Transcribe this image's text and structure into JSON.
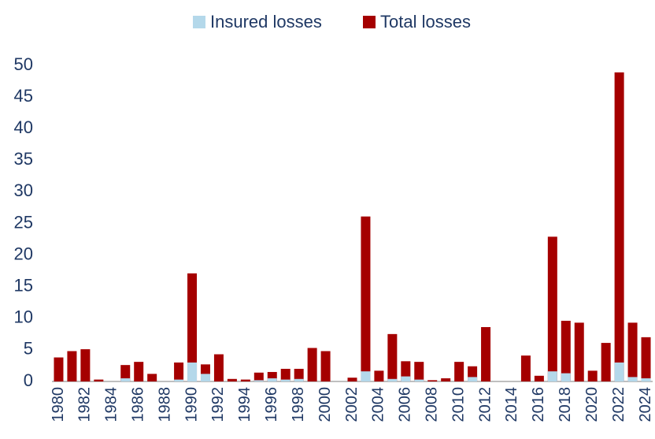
{
  "chart_data": {
    "type": "bar",
    "categories": [
      "1980",
      null,
      "1982",
      null,
      "1984",
      null,
      "1986",
      null,
      "1988",
      null,
      "1990",
      null,
      "1992",
      null,
      "1994",
      null,
      "1996",
      null,
      "1998",
      null,
      "2000",
      null,
      "2002",
      null,
      "2004",
      null,
      "2006",
      null,
      "2008",
      null,
      "2010",
      null,
      "2012",
      null,
      "2014",
      null,
      "2016",
      null,
      "2018",
      null,
      "2020",
      null,
      "2022",
      null,
      "2024"
    ],
    "series": [
      {
        "name": "Insured losses",
        "color": "#b4d8ea",
        "values": [
          0,
          0,
          0,
          0,
          0,
          0.5,
          0,
          0,
          0,
          0.3,
          3.0,
          1.2,
          0,
          0,
          0,
          0.2,
          0.5,
          0.3,
          0.4,
          0,
          0,
          0,
          0,
          1.6,
          0,
          0.4,
          0.8,
          0.3,
          0,
          0,
          0,
          0.7,
          0,
          0,
          0,
          0,
          0,
          1.6,
          1.3,
          0,
          0,
          0,
          3.0,
          0.7,
          0.5
        ]
      },
      {
        "name": "Total losses",
        "color": "#a50000",
        "values": [
          3.8,
          4.8,
          5.1,
          0.3,
          0,
          2.6,
          3.1,
          1.2,
          0,
          3.0,
          17.1,
          2.7,
          4.3,
          0.4,
          0.3,
          1.4,
          1.5,
          2.0,
          2.0,
          5.3,
          4.8,
          0,
          0.6,
          26.1,
          1.7,
          7.5,
          3.2,
          3.1,
          0.2,
          0.5,
          3.1,
          2.4,
          8.6,
          0,
          0,
          4.1,
          0.9,
          22.9,
          9.6,
          9.3,
          1.7,
          6.1,
          48.9,
          9.3,
          7.0
        ]
      }
    ],
    "ylim": [
      0,
      50
    ],
    "yticks": [
      0,
      5,
      10,
      15,
      20,
      25,
      30,
      35,
      40,
      45,
      50
    ],
    "grid": false,
    "legend": "top"
  }
}
